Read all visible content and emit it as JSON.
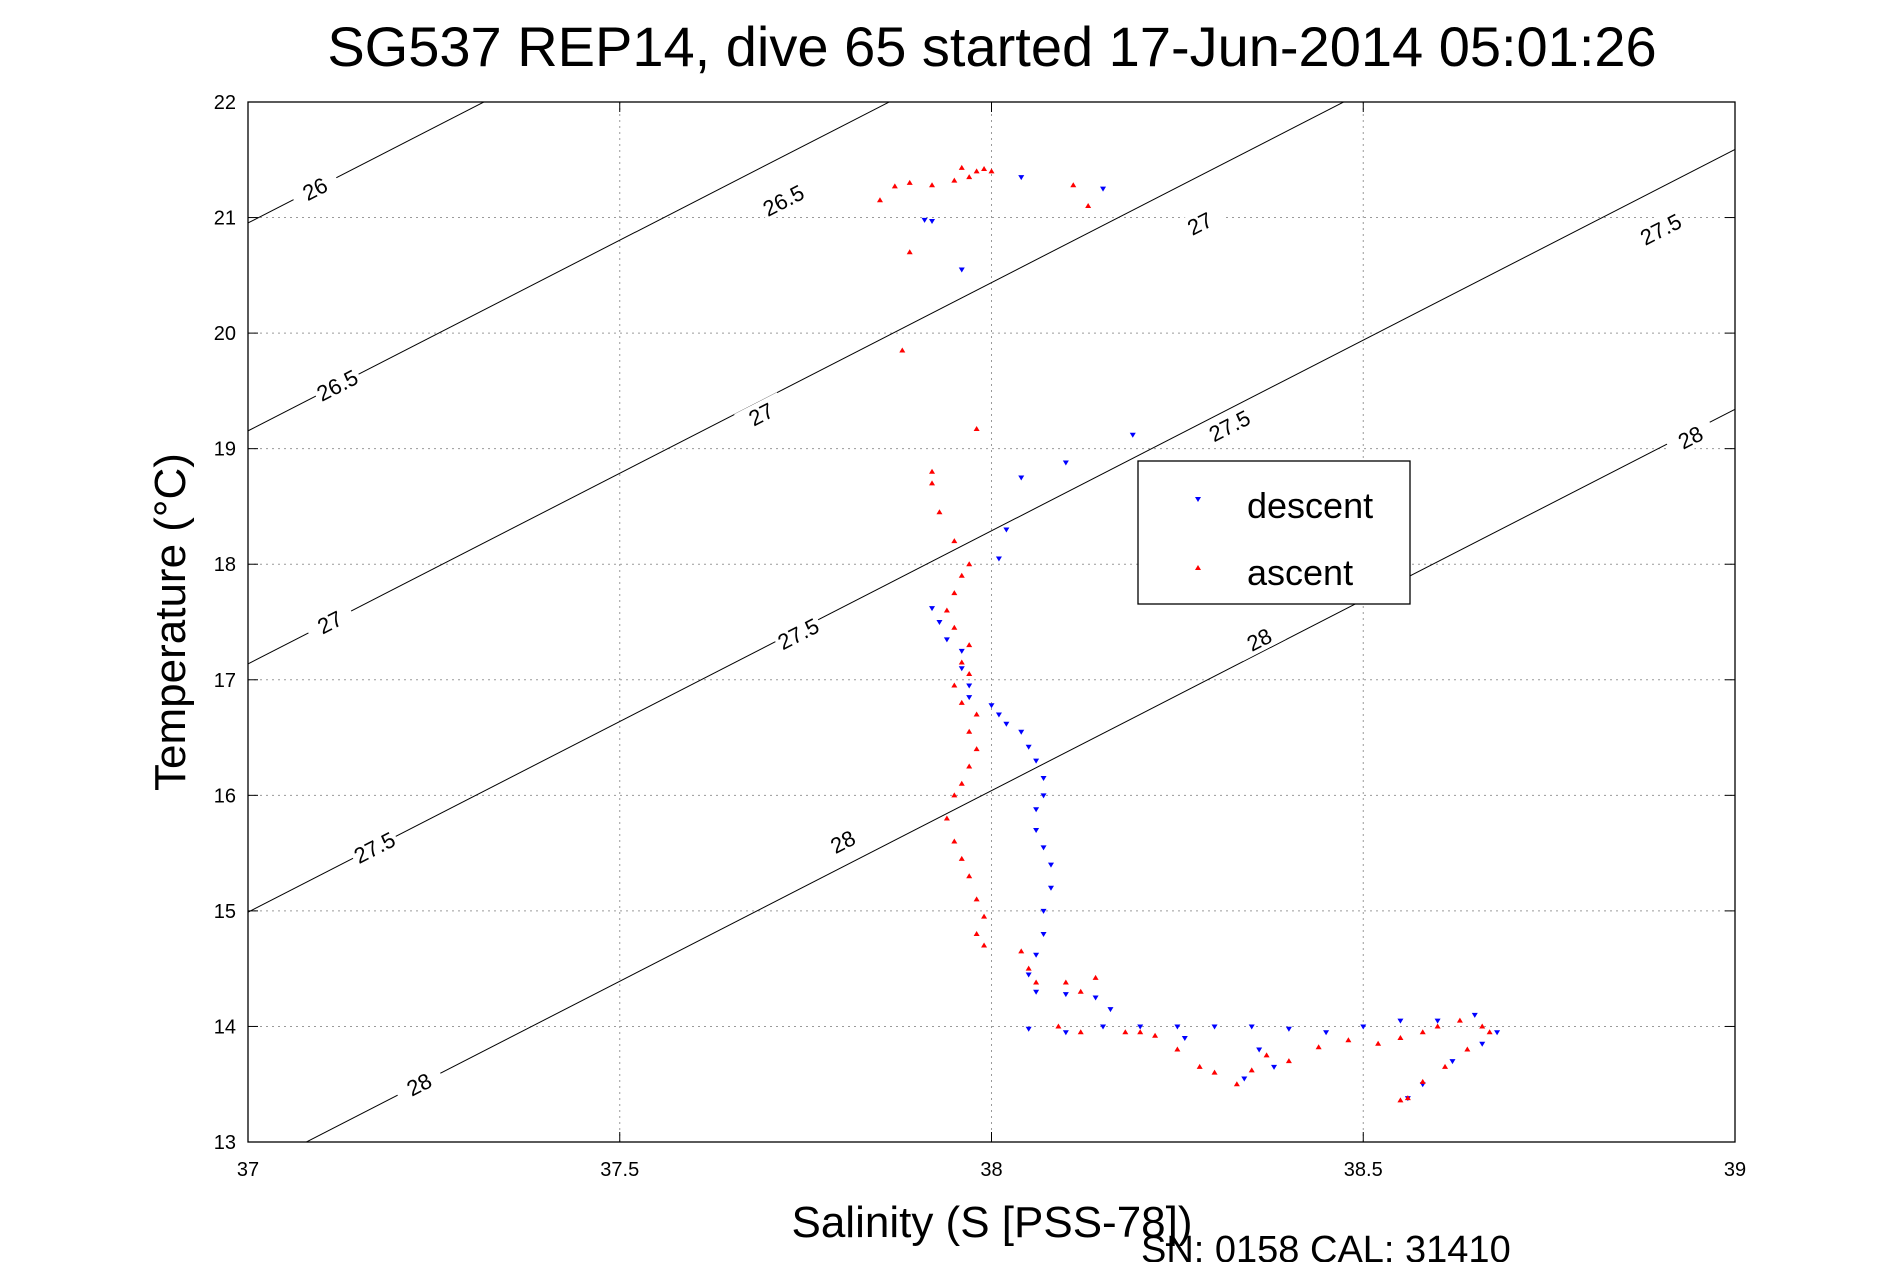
{
  "chart_data": {
    "type": "scatter",
    "title": "SG537 REP14, dive 65 started 17-Jun-2014 05:01:26",
    "xlabel": "Salinity (S [PSS-78])",
    "ylabel": "Temperature (°C)",
    "xlim": [
      37,
      39
    ],
    "ylim": [
      13,
      22
    ],
    "xticks": [
      "37",
      "37.5",
      "38",
      "38.5",
      "39"
    ],
    "yticks": [
      "13",
      "14",
      "15",
      "16",
      "17",
      "18",
      "19",
      "20",
      "21",
      "22"
    ],
    "grid": true,
    "legend_position": "center-right",
    "footer": "SN: 0158  CAL: 31410",
    "contours": [
      {
        "level": "26",
        "labels": [
          [
            37.09,
            21.25
          ]
        ]
      },
      {
        "level": "26.5",
        "labels": [
          [
            37.12,
            19.55
          ],
          [
            37.72,
            21.15
          ]
        ]
      },
      {
        "level": "27",
        "labels": [
          [
            37.11,
            17.5
          ],
          [
            37.69,
            19.3
          ],
          [
            38.28,
            20.95
          ]
        ]
      },
      {
        "level": "27.5",
        "labels": [
          [
            37.17,
            15.55
          ],
          [
            37.74,
            17.4
          ],
          [
            38.32,
            19.2
          ],
          [
            38.9,
            20.9
          ]
        ]
      },
      {
        "level": "28",
        "labels": [
          [
            37.23,
            13.5
          ],
          [
            37.8,
            15.6
          ],
          [
            38.36,
            17.35
          ],
          [
            38.94,
            19.1
          ]
        ]
      }
    ],
    "series": [
      {
        "name": "descent",
        "color": "#0000ff",
        "marker": "triangle-down",
        "points": [
          [
            37.91,
            20.98
          ],
          [
            37.92,
            20.97
          ],
          [
            38.04,
            21.35
          ],
          [
            38.15,
            21.25
          ],
          [
            37.96,
            20.55
          ],
          [
            38.19,
            19.12
          ],
          [
            38.1,
            18.88
          ],
          [
            38.04,
            18.75
          ],
          [
            38.02,
            18.3
          ],
          [
            38.01,
            18.05
          ],
          [
            37.92,
            17.62
          ],
          [
            37.93,
            17.5
          ],
          [
            37.94,
            17.35
          ],
          [
            37.96,
            17.25
          ],
          [
            37.96,
            17.1
          ],
          [
            37.97,
            16.95
          ],
          [
            37.97,
            16.85
          ],
          [
            38.0,
            16.78
          ],
          [
            38.01,
            16.7
          ],
          [
            38.02,
            16.62
          ],
          [
            38.04,
            16.55
          ],
          [
            38.05,
            16.42
          ],
          [
            38.06,
            16.3
          ],
          [
            38.07,
            16.15
          ],
          [
            38.07,
            16.0
          ],
          [
            38.06,
            15.88
          ],
          [
            38.06,
            15.7
          ],
          [
            38.07,
            15.55
          ],
          [
            38.08,
            15.4
          ],
          [
            38.08,
            15.2
          ],
          [
            38.07,
            15.0
          ],
          [
            38.07,
            14.8
          ],
          [
            38.06,
            14.62
          ],
          [
            38.05,
            14.45
          ],
          [
            38.06,
            14.3
          ],
          [
            38.1,
            14.28
          ],
          [
            38.14,
            14.25
          ],
          [
            38.16,
            14.15
          ],
          [
            38.15,
            14.0
          ],
          [
            38.2,
            14.0
          ],
          [
            38.25,
            14.0
          ],
          [
            38.3,
            14.0
          ],
          [
            38.35,
            14.0
          ],
          [
            38.4,
            13.98
          ],
          [
            38.45,
            13.95
          ],
          [
            38.5,
            14.0
          ],
          [
            38.55,
            14.05
          ],
          [
            38.6,
            14.05
          ],
          [
            38.65,
            14.1
          ],
          [
            38.68,
            13.95
          ],
          [
            38.66,
            13.85
          ],
          [
            38.62,
            13.7
          ],
          [
            38.58,
            13.5
          ],
          [
            38.56,
            13.38
          ],
          [
            38.38,
            13.65
          ],
          [
            38.36,
            13.8
          ],
          [
            38.34,
            13.55
          ],
          [
            38.1,
            13.95
          ],
          [
            38.05,
            13.98
          ],
          [
            38.26,
            13.9
          ]
        ]
      },
      {
        "name": "ascent",
        "color": "#ff0000",
        "marker": "triangle-up",
        "points": [
          [
            37.85,
            21.15
          ],
          [
            37.87,
            21.27
          ],
          [
            37.89,
            21.3
          ],
          [
            37.92,
            21.28
          ],
          [
            37.95,
            21.32
          ],
          [
            37.97,
            21.35
          ],
          [
            37.98,
            21.4
          ],
          [
            37.99,
            21.42
          ],
          [
            38.0,
            21.4
          ],
          [
            37.96,
            21.43
          ],
          [
            38.11,
            21.28
          ],
          [
            38.13,
            21.1
          ],
          [
            37.89,
            20.7
          ],
          [
            37.88,
            19.85
          ],
          [
            37.98,
            19.17
          ],
          [
            37.92,
            18.8
          ],
          [
            37.92,
            18.7
          ],
          [
            37.93,
            18.45
          ],
          [
            37.95,
            18.2
          ],
          [
            37.97,
            18.0
          ],
          [
            37.96,
            17.9
          ],
          [
            37.95,
            17.75
          ],
          [
            37.94,
            17.6
          ],
          [
            37.95,
            17.45
          ],
          [
            37.97,
            17.3
          ],
          [
            37.96,
            17.15
          ],
          [
            37.97,
            17.05
          ],
          [
            37.95,
            16.95
          ],
          [
            37.96,
            16.8
          ],
          [
            37.98,
            16.7
          ],
          [
            37.97,
            16.55
          ],
          [
            37.98,
            16.4
          ],
          [
            37.97,
            16.25
          ],
          [
            37.96,
            16.1
          ],
          [
            37.95,
            16.0
          ],
          [
            37.94,
            15.8
          ],
          [
            37.95,
            15.6
          ],
          [
            37.96,
            15.45
          ],
          [
            37.97,
            15.3
          ],
          [
            37.98,
            15.1
          ],
          [
            37.99,
            14.95
          ],
          [
            37.98,
            14.8
          ],
          [
            37.99,
            14.7
          ],
          [
            38.04,
            14.65
          ],
          [
            38.05,
            14.5
          ],
          [
            38.06,
            14.38
          ],
          [
            38.1,
            14.38
          ],
          [
            38.14,
            14.42
          ],
          [
            38.12,
            14.3
          ],
          [
            38.09,
            14.0
          ],
          [
            38.12,
            13.95
          ],
          [
            38.18,
            13.95
          ],
          [
            38.22,
            13.92
          ],
          [
            38.25,
            13.8
          ],
          [
            38.28,
            13.65
          ],
          [
            38.3,
            13.6
          ],
          [
            38.33,
            13.5
          ],
          [
            38.35,
            13.62
          ],
          [
            38.37,
            13.75
          ],
          [
            38.4,
            13.7
          ],
          [
            38.44,
            13.82
          ],
          [
            38.48,
            13.88
          ],
          [
            38.52,
            13.85
          ],
          [
            38.55,
            13.9
          ],
          [
            38.58,
            13.95
          ],
          [
            38.6,
            14.0
          ],
          [
            38.63,
            14.05
          ],
          [
            38.66,
            14.0
          ],
          [
            38.67,
            13.95
          ],
          [
            38.64,
            13.8
          ],
          [
            38.61,
            13.65
          ],
          [
            38.58,
            13.52
          ],
          [
            38.56,
            13.38
          ],
          [
            38.55,
            13.36
          ],
          [
            38.2,
            13.95
          ]
        ]
      }
    ]
  }
}
